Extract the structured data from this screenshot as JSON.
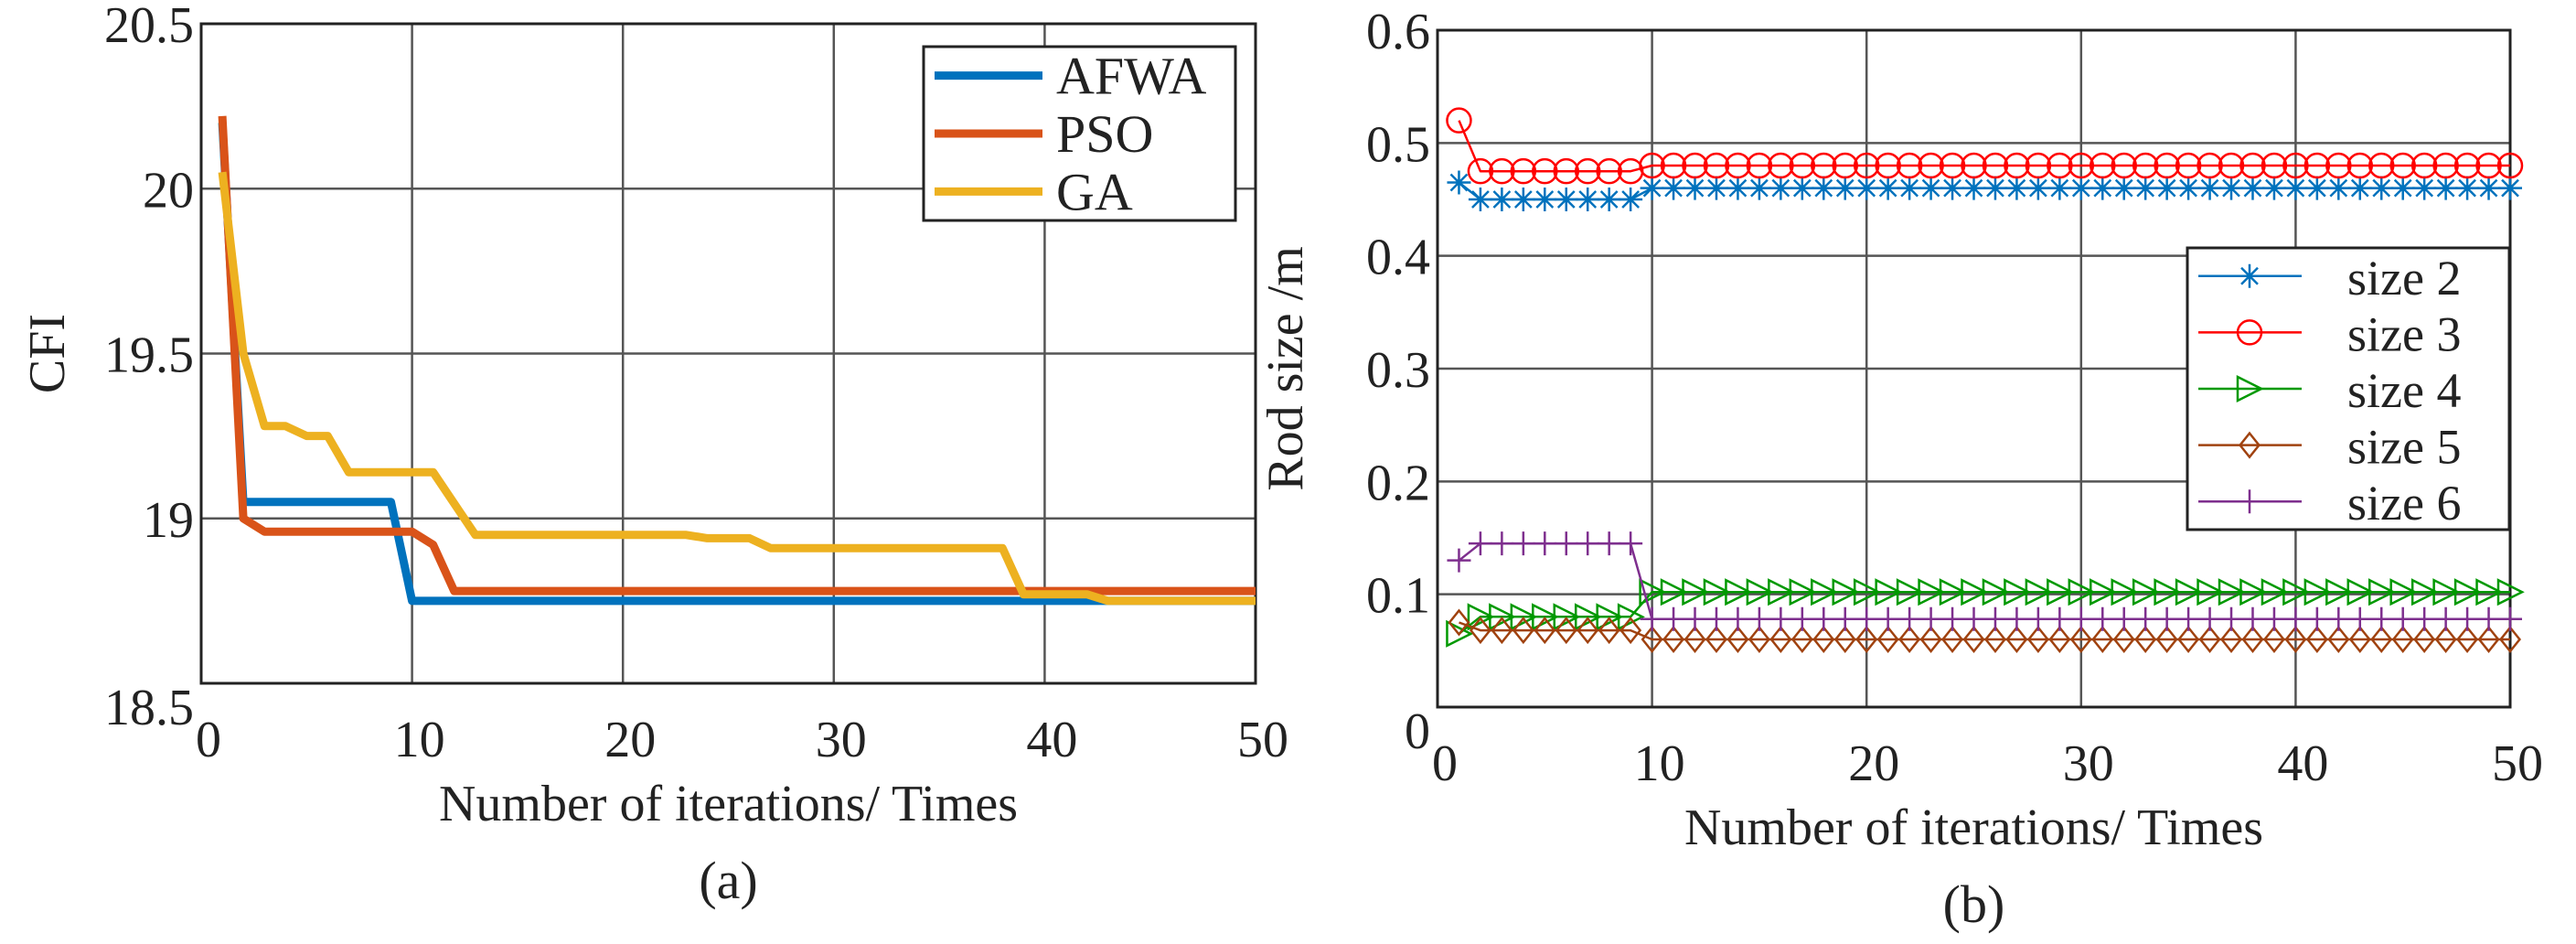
{
  "chart_data": [
    {
      "type": "line",
      "panel_label": "(a)",
      "xlabel": "Number of iterations/ Times",
      "ylabel": "CFI",
      "xlim": [
        0,
        50
      ],
      "ylim": [
        18.5,
        20.5
      ],
      "xticks": [
        "0",
        "10",
        "20",
        "30",
        "40",
        "50"
      ],
      "yticks": [
        "18.5",
        "19",
        "19.5",
        "20",
        "20.5"
      ],
      "xtick_values": [
        0,
        10,
        20,
        30,
        40,
        50
      ],
      "ytick_values": [
        18.5,
        19,
        19.5,
        20,
        20.5
      ],
      "grid": true,
      "legend_position": "top-right",
      "series": [
        {
          "name": "AFWA",
          "color": "#0072BD",
          "points": [
            [
              1,
              20.2
            ],
            [
              2,
              19.05
            ],
            [
              9,
              19.05
            ],
            [
              10,
              18.75
            ],
            [
              50,
              18.75
            ]
          ]
        },
        {
          "name": "PSO",
          "color": "#D95319",
          "points": [
            [
              1,
              20.22
            ],
            [
              2,
              19.0
            ],
            [
              3,
              18.96
            ],
            [
              10,
              18.96
            ],
            [
              11,
              18.92
            ],
            [
              12,
              18.78
            ],
            [
              50,
              18.78
            ]
          ]
        },
        {
          "name": "GA",
          "color": "#EDB120",
          "points": [
            [
              1,
              20.05
            ],
            [
              2,
              19.5
            ],
            [
              3,
              19.28
            ],
            [
              4,
              19.28
            ],
            [
              5,
              19.25
            ],
            [
              6,
              19.25
            ],
            [
              7,
              19.14
            ],
            [
              11,
              19.14
            ],
            [
              13,
              18.95
            ],
            [
              23,
              18.95
            ],
            [
              24,
              18.94
            ],
            [
              26,
              18.94
            ],
            [
              27,
              18.91
            ],
            [
              38,
              18.91
            ],
            [
              39,
              18.77
            ],
            [
              42,
              18.77
            ],
            [
              43,
              18.75
            ],
            [
              50,
              18.75
            ]
          ]
        }
      ]
    },
    {
      "type": "line",
      "panel_label": "(b)",
      "xlabel": "Number of iterations/ Times",
      "ylabel": "Rod size /m",
      "xlim": [
        0,
        50
      ],
      "ylim": [
        0,
        0.6
      ],
      "xticks": [
        "0",
        "10",
        "20",
        "30",
        "40",
        "50"
      ],
      "yticks": [
        "0",
        "0.1",
        "0.2",
        "0.3",
        "0.4",
        "0.5",
        "0.6"
      ],
      "xtick_values": [
        0,
        10,
        20,
        30,
        40,
        50
      ],
      "ytick_values": [
        0,
        0.1,
        0.2,
        0.3,
        0.4,
        0.5,
        0.6
      ],
      "grid": true,
      "legend_position": "right",
      "series": [
        {
          "name": "size 2",
          "color": "#0072BD",
          "marker": "asterisk",
          "first": 0.465,
          "early": 0.45,
          "late": 0.46
        },
        {
          "name": "size 3",
          "color": "#FF0000",
          "marker": "circle",
          "first": 0.52,
          "early": 0.475,
          "late": 0.48
        },
        {
          "name": "size 4",
          "color": "#009900",
          "marker": "triangle-right",
          "first": 0.065,
          "early": 0.08,
          "late": 0.102
        },
        {
          "name": "size 5",
          "color": "#A0420F",
          "marker": "diamond",
          "first": 0.075,
          "early": 0.068,
          "late": 0.06
        },
        {
          "name": "size 6",
          "color": "#7E2F8E",
          "marker": "plus",
          "first": 0.13,
          "early": 0.145,
          "late": 0.078
        }
      ]
    }
  ]
}
